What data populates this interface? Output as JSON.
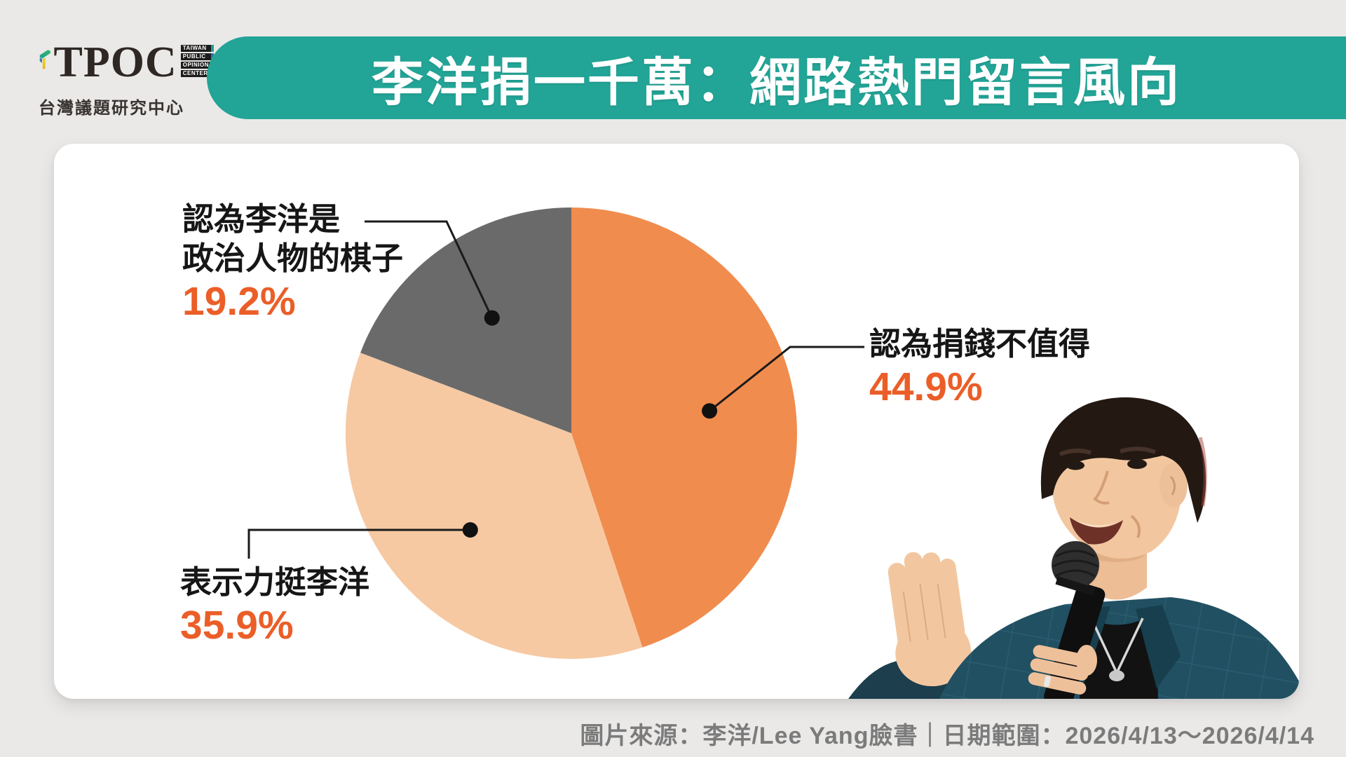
{
  "brand": {
    "acronym": "TPOC",
    "stack_words": [
      "TAIWAN",
      "PUBLIC",
      "OPINION",
      "CENTER"
    ],
    "org_name": "台灣議題研究中心"
  },
  "header": {
    "title": "李洋捐一千萬：網路熱門留言風向",
    "banner_color": "#22a496",
    "text_color": "#ffffff"
  },
  "chart_data": {
    "type": "pie",
    "title": "李洋捐一千萬：網路熱門留言風向",
    "start_angle": "12-oclock",
    "direction": "clockwise",
    "slices": [
      {
        "label": "認為捐錢不值得",
        "value": 44.9,
        "display": "44.9%",
        "color": "#f08c4e",
        "label_lines": [
          "認為捐錢不值得"
        ]
      },
      {
        "label": "表示力挺李洋",
        "value": 35.9,
        "display": "35.9%",
        "color": "#f6c9a3",
        "label_lines": [
          "表示力挺李洋"
        ]
      },
      {
        "label": "認為李洋是政治人物的棋子",
        "value": 19.2,
        "display": "19.2%",
        "color": "#6a6a6a",
        "label_lines": [
          "認為李洋是",
          "政治人物的棋子"
        ]
      }
    ],
    "legend_position": "callout-labels",
    "percent_color": "#eb5e28",
    "callout_dot_color": "#111111"
  },
  "footer": {
    "text": "圖片來源：李洋/Lee Yang臉書｜日期範圍：2026/4/13～2026/4/14"
  }
}
